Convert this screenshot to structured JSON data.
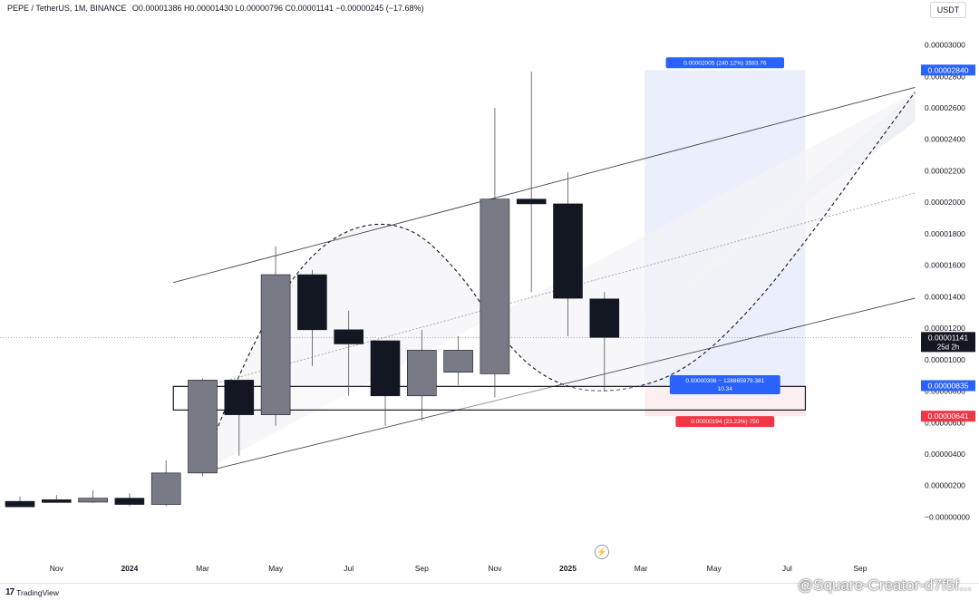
{
  "header": {
    "symbol": "PEPE / TetherUS, 1M, BINANCE",
    "ohlc": "O0.00001386 H0.00001430 L0.00000796 C0.00001141 −0.00000245 (−17.68%)"
  },
  "quote_badge": "USDT",
  "footer": {
    "brand_mark": "17",
    "brand_name": "TradingView"
  },
  "watermark": "@Square-Creator-d7f5f...",
  "colors": {
    "up_candle": "#787b86",
    "down_candle": "#131722",
    "profit_zone": "#e8ecfb",
    "loss_zone": "#fbe3e5",
    "blue_label": "#2962ff",
    "red_label": "#f23645"
  },
  "chart_data": {
    "type": "candlestick",
    "x_ticks": [
      {
        "label": "Nov",
        "x": 1,
        "year": false
      },
      {
        "label": "2024",
        "x": 3,
        "year": true
      },
      {
        "label": "Mar",
        "x": 5,
        "year": false
      },
      {
        "label": "May",
        "x": 7,
        "year": false
      },
      {
        "label": "Jul",
        "x": 9,
        "year": false
      },
      {
        "label": "Sep",
        "x": 11,
        "year": false
      },
      {
        "label": "Nov",
        "x": 13,
        "year": false
      },
      {
        "label": "2025",
        "x": 15,
        "year": true
      },
      {
        "label": "Mar",
        "x": 17,
        "year": false
      },
      {
        "label": "May",
        "x": 19,
        "year": false
      },
      {
        "label": "Jul",
        "x": 21,
        "year": false
      },
      {
        "label": "Sep",
        "x": 23,
        "year": false
      }
    ],
    "y_ticks": [
      "0.00003000",
      "0.00002800",
      "0.00002600",
      "0.00002400",
      "0.00002200",
      "0.00002000",
      "0.00001800",
      "0.00001600",
      "0.00001400",
      "0.00001200",
      "0.00001000",
      "0.00000800",
      "0.00000600",
      "0.00000400",
      "0.00000200",
      "−0.00000000"
    ],
    "y_tick_values": [
      3.0,
      2.8,
      2.6,
      2.4,
      2.2,
      2.0,
      1.8,
      1.6,
      1.4,
      1.2,
      1.0,
      0.8,
      0.6,
      0.4,
      0.2,
      0.0
    ],
    "ylim": [
      -0.17,
      3.17
    ],
    "unit_scale": "values in 1e-5 USDT",
    "candles": [
      {
        "x": 0,
        "o": 0.1,
        "h": 0.13,
        "l": 0.07,
        "c": 0.065
      },
      {
        "x": 1,
        "o": 0.11,
        "h": 0.14,
        "l": 0.1,
        "c": 0.1
      },
      {
        "x": 2,
        "o": 0.095,
        "h": 0.17,
        "l": 0.09,
        "c": 0.12
      },
      {
        "x": 3,
        "o": 0.12,
        "h": 0.15,
        "l": 0.07,
        "c": 0.08
      },
      {
        "x": 4,
        "o": 0.08,
        "h": 0.36,
        "l": 0.07,
        "c": 0.28
      },
      {
        "x": 5,
        "o": 0.28,
        "h": 0.88,
        "l": 0.26,
        "c": 0.87
      },
      {
        "x": 6,
        "o": 0.87,
        "h": 0.87,
        "l": 0.39,
        "c": 0.65
      },
      {
        "x": 7,
        "o": 0.65,
        "h": 1.72,
        "l": 0.58,
        "c": 1.54
      },
      {
        "x": 8,
        "o": 1.54,
        "h": 1.57,
        "l": 0.96,
        "c": 1.19
      },
      {
        "x": 9,
        "o": 1.19,
        "h": 1.31,
        "l": 0.77,
        "c": 1.1
      },
      {
        "x": 10,
        "o": 1.12,
        "h": 1.12,
        "l": 0.58,
        "c": 0.77
      },
      {
        "x": 11,
        "o": 0.77,
        "h": 1.19,
        "l": 0.61,
        "c": 1.06
      },
      {
        "x": 12,
        "o": 0.92,
        "h": 1.15,
        "l": 0.84,
        "c": 1.06
      },
      {
        "x": 13,
        "o": 0.91,
        "h": 2.6,
        "l": 0.76,
        "c": 2.02
      },
      {
        "x": 14,
        "o": 2.02,
        "h": 2.83,
        "l": 1.43,
        "c": 1.99
      },
      {
        "x": 15,
        "o": 1.99,
        "h": 2.19,
        "l": 1.15,
        "c": 1.39
      },
      {
        "x": 16,
        "o": 1.386,
        "h": 1.43,
        "l": 0.796,
        "c": 1.141
      }
    ],
    "trend_channel": {
      "upper": [
        [
          4.2,
          1.49
        ],
        [
          24.5,
          2.73
        ]
      ],
      "lower": [
        [
          4.9,
          0.28
        ],
        [
          24.5,
          1.39
        ]
      ],
      "mid": [
        [
          4.9,
          0.82
        ],
        [
          24.5,
          2.06
        ]
      ]
    },
    "cup_curve": [
      [
        4.9,
        0.28
      ],
      [
        6.6,
        1.24
      ],
      [
        8.4,
        1.8
      ],
      [
        10.5,
        1.9
      ],
      [
        12.2,
        1.52
      ],
      [
        13.4,
        1.06
      ],
      [
        14.8,
        0.82
      ],
      [
        16.4,
        0.79
      ],
      [
        18.2,
        0.92
      ],
      [
        20.0,
        1.31
      ],
      [
        21.8,
        1.84
      ],
      [
        23.2,
        2.29
      ],
      [
        24.5,
        2.7
      ]
    ],
    "target_wedge": [
      [
        16.9,
        1.22
      ],
      [
        24.5,
        2.7
      ],
      [
        24.5,
        2.51
      ]
    ],
    "support_box": {
      "x1": 4.2,
      "x2": 21.5,
      "y_low": 0.68,
      "y_high": 0.83
    },
    "position_tool": {
      "x1": 17.1,
      "x2": 21.5,
      "entry": 0.835,
      "target": 2.84,
      "stop": 0.641,
      "target_label": "0.00002005 (240.12%) 3583.76",
      "entry_label_line1": "0.00000306 − 128865979.381",
      "entry_label_line2": "10.34",
      "stop_label": "0.00000194 (23.23%) 750"
    },
    "price_line": {
      "value": 1.141,
      "label": "0.00001141",
      "sublabel": "25d 2h"
    },
    "axis_badges": [
      {
        "value": 2.84,
        "label": "0.00002840",
        "color": "#2962ff"
      },
      {
        "value": 0.835,
        "label": "0.00000835",
        "color": "#2962ff"
      },
      {
        "value": 0.641,
        "label": "0.00000641",
        "color": "#f23645"
      }
    ]
  }
}
